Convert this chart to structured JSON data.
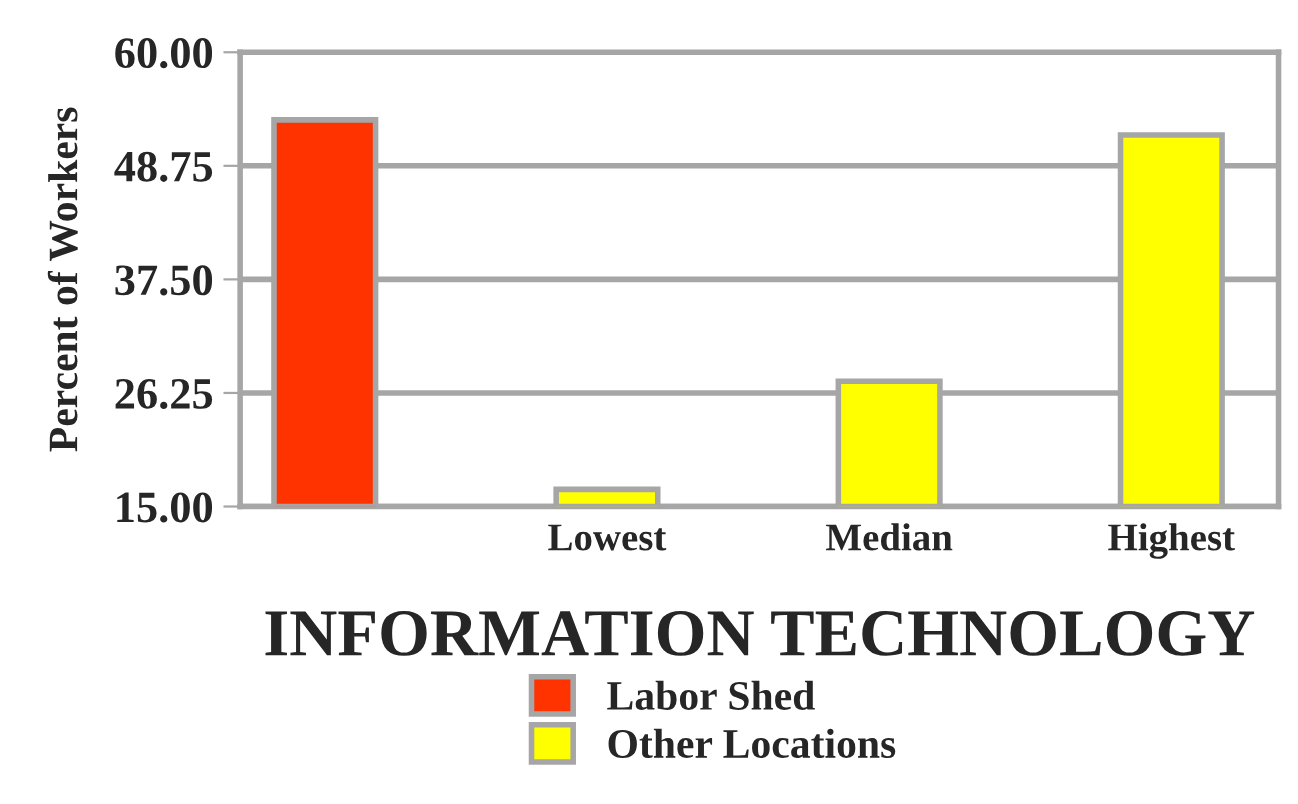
{
  "chart_data": {
    "type": "bar",
    "title": "INFORMATION TECHNOLOGY",
    "ylabel": "Percent of Workers",
    "categories": [
      null,
      "Lowest",
      "Median",
      "Highest"
    ],
    "series": [
      {
        "name": "Labor Shed",
        "color": "#ff3300",
        "values": [
          53.3,
          null,
          null,
          null
        ]
      },
      {
        "name": "Other Locations",
        "color": "#ffff00",
        "values": [
          null,
          16.7,
          27.4,
          51.8
        ]
      }
    ],
    "ylim": [
      15,
      60
    ],
    "yticks": [
      {
        "value": 15,
        "label": "15.00"
      },
      {
        "value": 26.25,
        "label": "26.25"
      },
      {
        "value": 37.5,
        "label": "37.50"
      },
      {
        "value": 48.75,
        "label": "48.75"
      },
      {
        "value": 60,
        "label": "60.00"
      }
    ],
    "grid": "y",
    "legend": "bottom"
  }
}
